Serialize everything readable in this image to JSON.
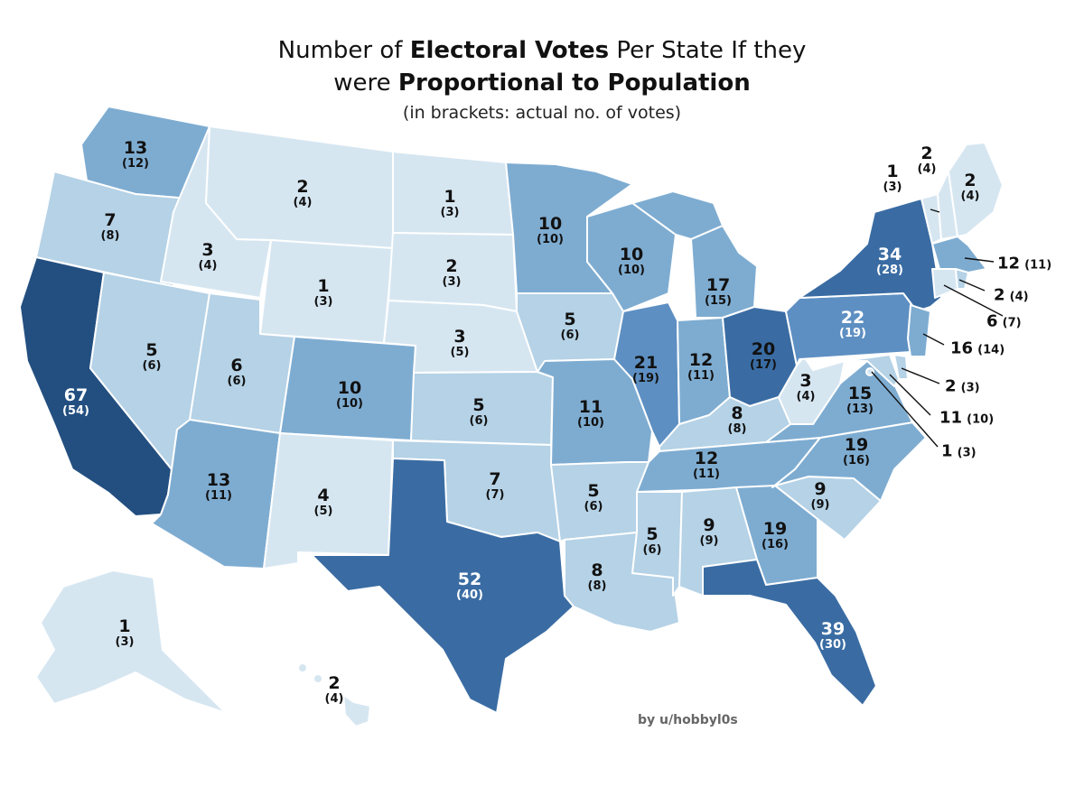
{
  "title": {
    "line1_pre": "Number of ",
    "line1_bold": "Electoral Votes",
    "line1_post": " Per State If they",
    "line2_pre": "were ",
    "line2_bold": "Proportional to Population",
    "line3": "(in brackets: actual no. of votes)"
  },
  "palette": {
    "c1": "#d6e6f1",
    "c2": "#b5d2e6",
    "c3": "#7eacd1",
    "c4": "#5d8fc2",
    "c5": "#3a6ca3",
    "c6": "#234f80",
    "border": "#ffffff"
  },
  "states": {
    "WA": {
      "prop": "13",
      "act": "(12)"
    },
    "OR": {
      "prop": "7",
      "act": "(8)"
    },
    "CA": {
      "prop": "67",
      "act": "(54)"
    },
    "ID": {
      "prop": "3",
      "act": "(4)"
    },
    "NV": {
      "prop": "5",
      "act": "(6)"
    },
    "MT": {
      "prop": "2",
      "act": "(4)"
    },
    "WY": {
      "prop": "1",
      "act": "(3)"
    },
    "UT": {
      "prop": "6",
      "act": "(6)"
    },
    "AZ": {
      "prop": "13",
      "act": "(11)"
    },
    "CO": {
      "prop": "10",
      "act": "(10)"
    },
    "NM": {
      "prop": "4",
      "act": "(5)"
    },
    "ND": {
      "prop": "1",
      "act": "(3)"
    },
    "SD": {
      "prop": "2",
      "act": "(3)"
    },
    "NE": {
      "prop": "3",
      "act": "(5)"
    },
    "KS": {
      "prop": "5",
      "act": "(6)"
    },
    "OK": {
      "prop": "7",
      "act": "(7)"
    },
    "TX": {
      "prop": "52",
      "act": "(40)"
    },
    "MN": {
      "prop": "10",
      "act": "(10)"
    },
    "IA": {
      "prop": "5",
      "act": "(6)"
    },
    "MO": {
      "prop": "11",
      "act": "(10)"
    },
    "AR": {
      "prop": "5",
      "act": "(6)"
    },
    "LA": {
      "prop": "8",
      "act": "(8)"
    },
    "WI": {
      "prop": "10",
      "act": "(10)"
    },
    "IL": {
      "prop": "21",
      "act": "(19)"
    },
    "MI": {
      "prop": "17",
      "act": "(15)"
    },
    "IN": {
      "prop": "12",
      "act": "(11)"
    },
    "OH": {
      "prop": "20",
      "act": "(17)"
    },
    "KY": {
      "prop": "8",
      "act": "(8)"
    },
    "TN": {
      "prop": "12",
      "act": "(11)"
    },
    "MS": {
      "prop": "5",
      "act": "(6)"
    },
    "AL": {
      "prop": "9",
      "act": "(9)"
    },
    "GA": {
      "prop": "19",
      "act": "(16)"
    },
    "FL": {
      "prop": "39",
      "act": "(30)"
    },
    "SC": {
      "prop": "9",
      "act": "(9)"
    },
    "NC": {
      "prop": "19",
      "act": "(16)"
    },
    "VA": {
      "prop": "15",
      "act": "(13)"
    },
    "WV": {
      "prop": "3",
      "act": "(4)"
    },
    "PA": {
      "prop": "22",
      "act": "(19)"
    },
    "NY": {
      "prop": "34",
      "act": "(28)"
    },
    "VT": {
      "prop": "1",
      "act": "(3)"
    },
    "NH": {
      "prop": "2",
      "act": "(4)"
    },
    "ME": {
      "prop": "2",
      "act": "(4)"
    },
    "MA": {
      "prop": "12",
      "act": "(11)"
    },
    "RI": {
      "prop": "2",
      "act": "(4)"
    },
    "CT": {
      "prop": "6",
      "act": "(7)"
    },
    "NJ": {
      "prop": "16",
      "act": "(14)"
    },
    "DE": {
      "prop": "2",
      "act": "(3)"
    },
    "MD": {
      "prop": "11",
      "act": "(10)"
    },
    "DC": {
      "prop": "1",
      "act": "(3)"
    },
    "AK": {
      "prop": "1",
      "act": "(3)"
    },
    "HI": {
      "prop": "2",
      "act": "(4)"
    }
  },
  "credit": "by u/hobbyl0s"
}
